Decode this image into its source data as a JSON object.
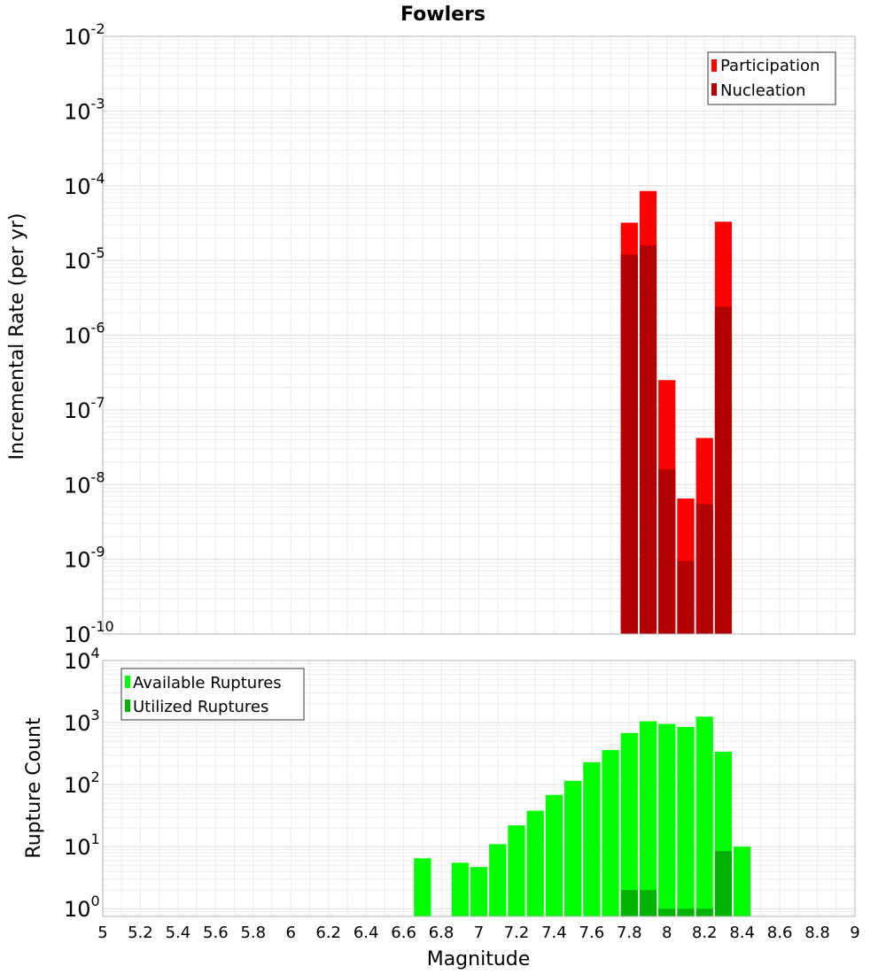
{
  "chart_data": [
    {
      "type": "bar",
      "title": "Fowlers",
      "xlabel": "",
      "ylabel": "Incremental Rate (per yr)",
      "yscale": "log",
      "ylim": [
        1e-10,
        0.01
      ],
      "xlim": [
        5,
        9
      ],
      "bar_width": 0.1,
      "grid": true,
      "legend_position": "top-right",
      "y_tick_exponents": [
        "-2",
        "-3",
        "-4",
        "-5",
        "-6",
        "-7",
        "-8",
        "-9",
        "-10"
      ],
      "x": [
        7.8,
        7.9,
        8.0,
        8.1,
        8.2,
        8.3
      ],
      "series": [
        {
          "name": "Participation",
          "color": "#ff0000",
          "values": [
            3.2e-05,
            8.5e-05,
            2.5e-07,
            6.5e-09,
            4.2e-08,
            3.3e-05
          ]
        },
        {
          "name": "Nucleation",
          "color": "#b30000",
          "values": [
            1.2e-05,
            1.6e-05,
            1.6e-08,
            9.5e-10,
            5.5e-09,
            2.4e-06
          ]
        }
      ]
    },
    {
      "type": "bar",
      "title": "",
      "xlabel": "Magnitude",
      "ylabel": "Rupture Count",
      "yscale": "log",
      "ylim": [
        0.75,
        10000
      ],
      "xlim": [
        5,
        9
      ],
      "bar_width": 0.1,
      "grid": true,
      "legend_position": "top-left",
      "y_tick_exponents": [
        "4",
        "3",
        "2",
        "1",
        "0"
      ],
      "x_ticks": [
        "5",
        "5.2",
        "5.4",
        "5.6",
        "5.8",
        "6",
        "6.2",
        "6.4",
        "6.6",
        "6.8",
        "7",
        "7.2",
        "7.4",
        "7.6",
        "7.8",
        "8",
        "8.2",
        "8.4",
        "8.6",
        "8.8",
        "9"
      ],
      "series": [
        {
          "name": "Available Ruptures",
          "color": "#00ff00",
          "x": [
            6.7,
            6.9,
            7.0,
            7.1,
            7.2,
            7.3,
            7.4,
            7.5,
            7.6,
            7.7,
            7.8,
            7.9,
            8.0,
            8.1,
            8.2,
            8.3,
            8.4
          ],
          "values": [
            6.5,
            5.5,
            4.7,
            11,
            22,
            38,
            68,
            115,
            230,
            360,
            680,
            1050,
            950,
            850,
            1250,
            340,
            10
          ]
        },
        {
          "name": "Utilized Ruptures",
          "color": "#00b300",
          "x": [
            7.8,
            7.9,
            8.0,
            8.1,
            8.2,
            8.3
          ],
          "values": [
            2,
            2,
            1,
            1,
            1,
            8.5
          ]
        }
      ]
    }
  ]
}
